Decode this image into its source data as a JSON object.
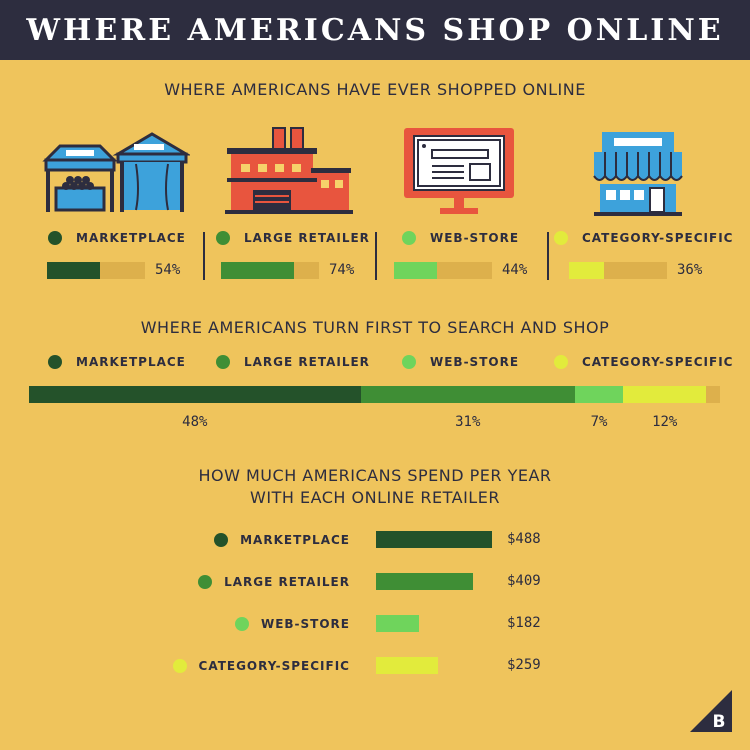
{
  "header": {
    "title": "WHERE AMERICANS SHOP ONLINE"
  },
  "colors": {
    "background": "#EFC45C",
    "header_bg": "#2D2D3F",
    "marketplace": "#24522A",
    "large_retailer": "#3F8E35",
    "web_store": "#6FD45C",
    "category_specific": "#E2EB3C",
    "track": "#DDB04C"
  },
  "section1": {
    "title": "WHERE AMERICANS HAVE EVER SHOPPED ONLINE",
    "icons": [
      "market-stalls-icon",
      "factory-icon",
      "computer-monitor-icon",
      "storefront-icon"
    ],
    "items": [
      {
        "label": "MARKETPLACE",
        "value": 54,
        "value_label": "54%"
      },
      {
        "label": "LARGE RETAILER",
        "value": 74,
        "value_label": "74%"
      },
      {
        "label": "WEB-STORE",
        "value": 44,
        "value_label": "44%"
      },
      {
        "label": "CATEGORY-SPECIFIC",
        "value": 36,
        "value_label": "36%"
      }
    ]
  },
  "section2": {
    "title": "WHERE AMERICANS TURN FIRST TO SEARCH AND SHOP",
    "legend": [
      "MARKETPLACE",
      "LARGE RETAILER",
      "WEB-STORE",
      "CATEGORY-SPECIFIC"
    ],
    "segments": [
      {
        "value": 48,
        "value_label": "48%"
      },
      {
        "value": 31,
        "value_label": "31%"
      },
      {
        "value": 7,
        "value_label": "7%"
      },
      {
        "value": 12,
        "value_label": "12%"
      }
    ]
  },
  "section3": {
    "title_line1": "HOW MUCH AMERICANS SPEND PER YEAR",
    "title_line2": "WITH EACH ONLINE RETAILER",
    "rows": [
      {
        "label": "MARKETPLACE",
        "value": 488,
        "value_label": "$488"
      },
      {
        "label": "LARGE RETAILER",
        "value": 409,
        "value_label": "$409"
      },
      {
        "label": "WEB-STORE",
        "value": 182,
        "value_label": "$182"
      },
      {
        "label": "CATEGORY-SPECIFIC",
        "value": 259,
        "value_label": "$259"
      }
    ]
  },
  "logo": {
    "icon": "bigcommerce-b-logo-icon"
  },
  "chart_data": [
    {
      "type": "bar",
      "title": "WHERE AMERICANS HAVE EVER SHOPPED ONLINE",
      "categories": [
        "MARKETPLACE",
        "LARGE RETAILER",
        "WEB-STORE",
        "CATEGORY-SPECIFIC"
      ],
      "values": [
        54,
        74,
        44,
        36
      ],
      "unit": "%",
      "ylim": [
        0,
        100
      ]
    },
    {
      "type": "bar",
      "stacked": true,
      "title": "WHERE AMERICANS TURN FIRST TO SEARCH AND SHOP",
      "categories": [
        "MARKETPLACE",
        "LARGE RETAILER",
        "WEB-STORE",
        "CATEGORY-SPECIFIC"
      ],
      "values": [
        48,
        31,
        7,
        12
      ],
      "unit": "%",
      "ylim": [
        0,
        100
      ]
    },
    {
      "type": "bar",
      "orientation": "horizontal",
      "title": "HOW MUCH AMERICANS SPEND PER YEAR WITH EACH ONLINE RETAILER",
      "categories": [
        "MARKETPLACE",
        "LARGE RETAILER",
        "WEB-STORE",
        "CATEGORY-SPECIFIC"
      ],
      "values": [
        488,
        409,
        182,
        259
      ],
      "unit": "$"
    }
  ]
}
